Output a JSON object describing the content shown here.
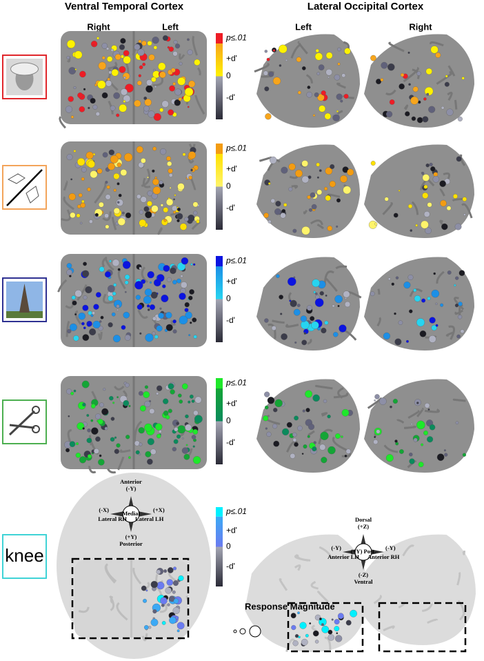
{
  "header": {
    "vtc_title": "Ventral Temporal Cortex",
    "loc_title": "Lateral Occipital Cortex"
  },
  "columns": {
    "vtc": [
      "Right",
      "Left"
    ],
    "loc": [
      "Left",
      "Right"
    ]
  },
  "rows": [
    {
      "frame_color": "#e0262b",
      "colors": [
        "#ee1c25",
        "#f7a51c",
        "#fff200"
      ],
      "colorbar": [
        "p≤.01",
        "+d'",
        "0",
        "-d'"
      ]
    },
    {
      "frame_color": "#f3a45a",
      "colors": [
        "#f39c12",
        "#ffe100",
        "#fff46b"
      ],
      "colorbar": [
        "p≤.01",
        "+d'",
        "0",
        "-d'"
      ]
    },
    {
      "frame_color": "#2e3192",
      "colors": [
        "#0b14e0",
        "#1c8fe6",
        "#27d4f0"
      ],
      "colorbar": [
        "p≤.01",
        "+d'",
        "0",
        "-d'"
      ]
    },
    {
      "frame_color": "#4caf50",
      "colors": [
        "#1ee82a",
        "#14a536",
        "#0b8a5c"
      ],
      "colorbar": [
        "p≤.01",
        "+d'",
        "0",
        "-d'"
      ]
    },
    {
      "frame_color": "#3fd3d6",
      "colors": [
        "#00f0ff",
        "#3ba9f5",
        "#6b7bf0"
      ],
      "colorbar": [
        "p≤.01",
        "+d'",
        "0",
        "-d'"
      ],
      "icon_text": "knee"
    }
  ],
  "compass_vtc": {
    "top": "Anterior",
    "top_axis": "(-Y)",
    "center": "Medial",
    "left_axis": "(-X)",
    "left": "Lateral RH",
    "right_axis": "(+X)",
    "right": "Lateral LH",
    "bottom_axis": "(+Y)",
    "bottom": "Posterior"
  },
  "compass_loc": {
    "top": "Dorsal",
    "top_axis": "(+Z)",
    "center": "(+Y) Post.",
    "left_axis": "(-Y)",
    "left": "Anterior LH",
    "right_axis": "(-Y)",
    "right": "Anterior RH",
    "bottom_axis": "(-Z)",
    "bottom": "Ventral"
  },
  "legend": {
    "size_title": "Response Magnitude"
  }
}
